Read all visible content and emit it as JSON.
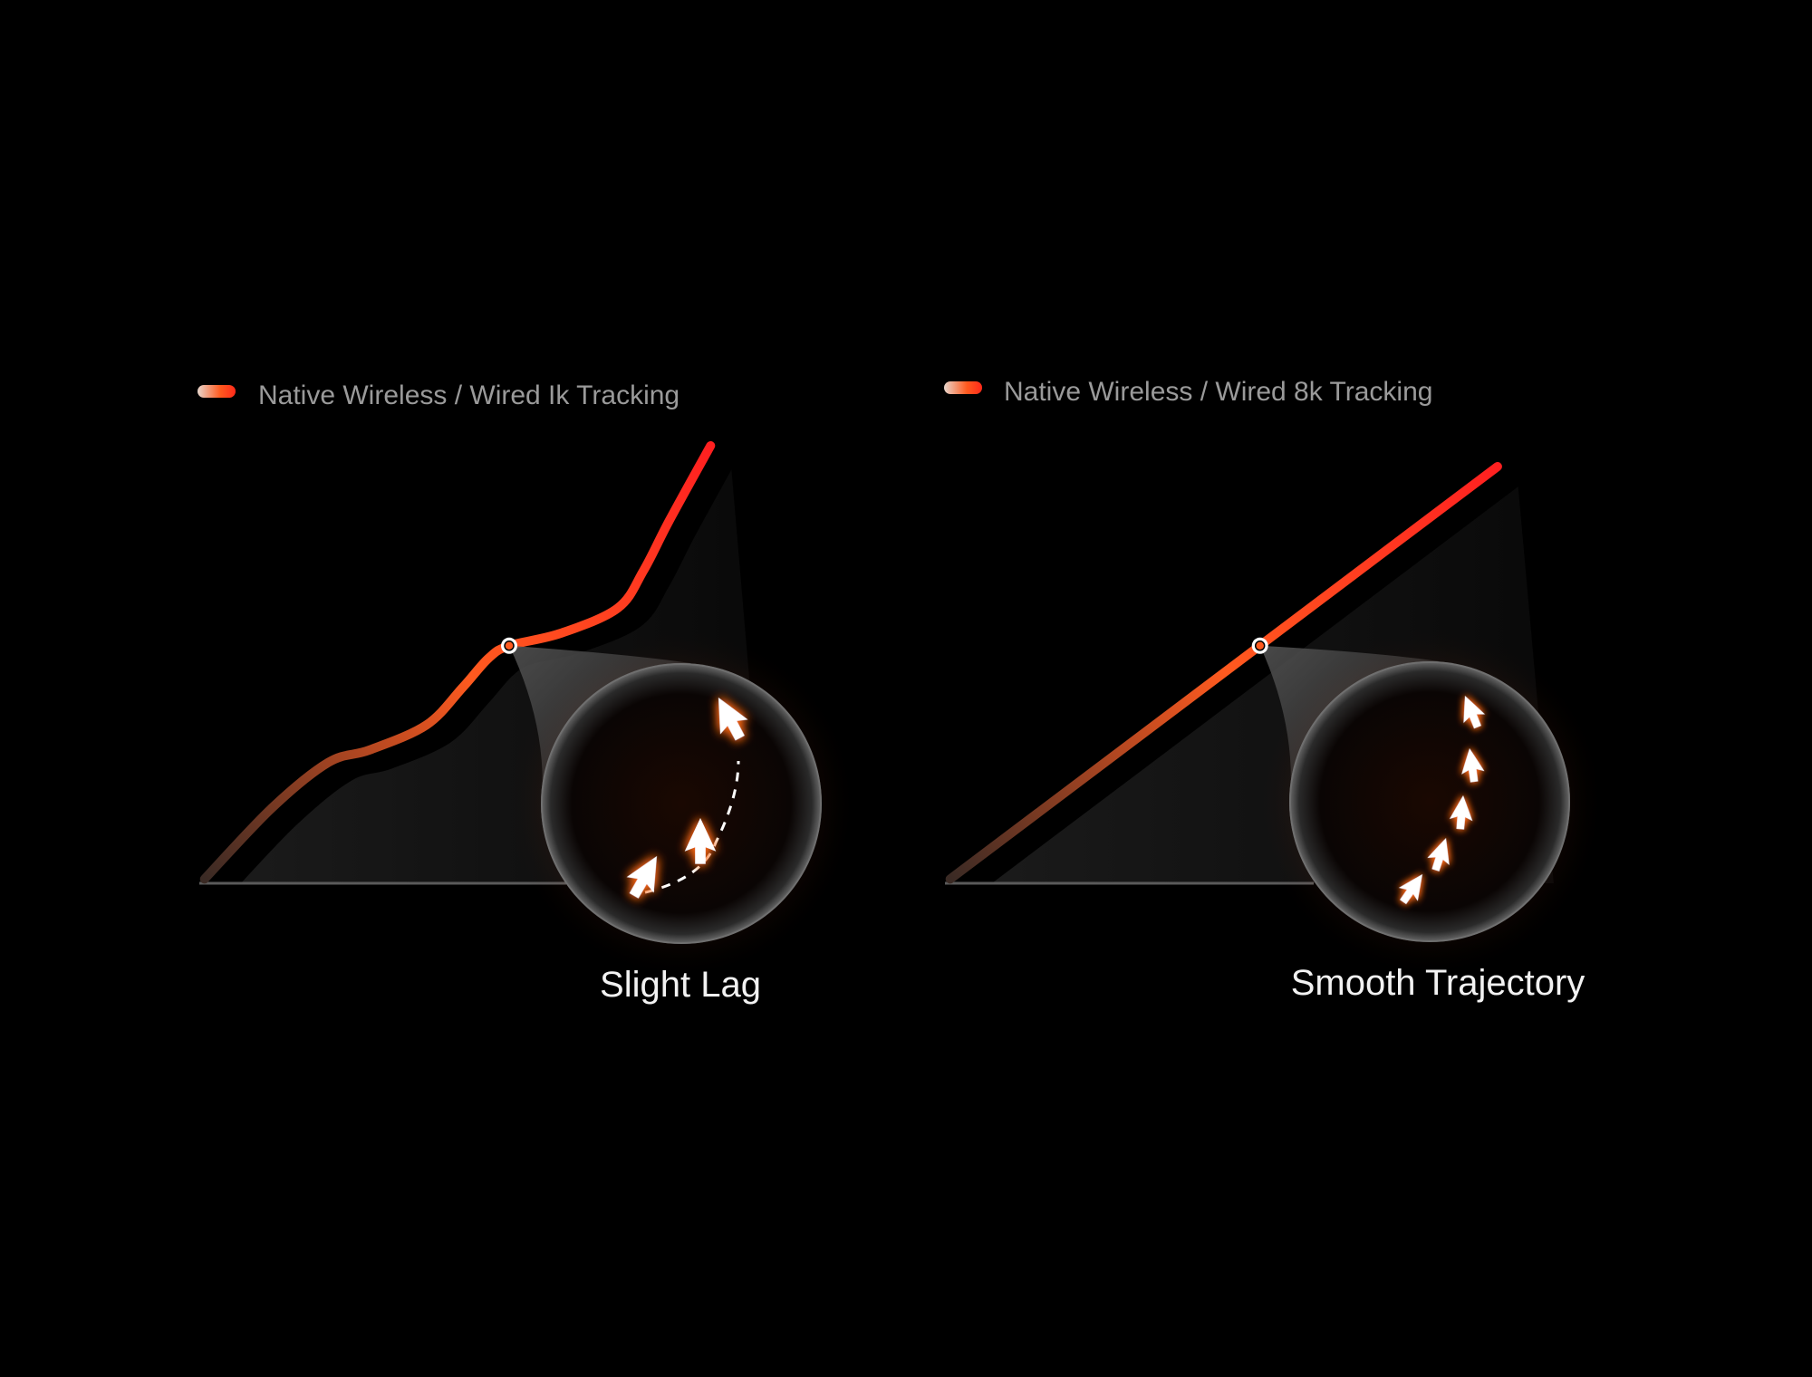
{
  "colors": {
    "background": "#000000",
    "line_start": "#5a3a2e",
    "line_mid": "#ff5a1f",
    "line_end": "#ff2020",
    "axis": "#8a8a8a",
    "legend_text": "#9a9a9a",
    "caption": "#f2f2f2",
    "glow": "#ff6a1a"
  },
  "chart_data": [
    {
      "type": "line",
      "legend": "Native Wireless / Wired Ik Tracking",
      "legend_placement": "top-left",
      "caption": "Slight Lag",
      "xlim": [
        0,
        110
      ],
      "ylim": [
        0,
        110
      ],
      "grid": false,
      "points": [
        [
          1,
          1
        ],
        [
          14,
          18
        ],
        [
          25,
          29
        ],
        [
          33,
          32
        ],
        [
          44,
          38
        ],
        [
          51,
          47
        ],
        [
          56,
          54
        ],
        [
          60,
          57
        ],
        [
          70,
          60
        ],
        [
          81,
          66
        ],
        [
          86,
          75
        ],
        [
          91,
          87
        ],
        [
          99,
          105
        ]
      ],
      "highlight": [
        60,
        57
      ],
      "magnifier_icon": "cursor-arrow-icon",
      "cursor_count": 3
    },
    {
      "type": "line",
      "legend": "Native Wireless / Wired 8k Tracking",
      "legend_placement": "top-left",
      "caption": "Smooth Trajectory",
      "xlim": [
        0,
        110
      ],
      "ylim": [
        0,
        110
      ],
      "grid": false,
      "points": [
        [
          1,
          1
        ],
        [
          107,
          100
        ]
      ],
      "highlight": [
        61,
        57
      ],
      "magnifier_icon": "cursor-arrow-icon",
      "cursor_count": 5
    }
  ]
}
